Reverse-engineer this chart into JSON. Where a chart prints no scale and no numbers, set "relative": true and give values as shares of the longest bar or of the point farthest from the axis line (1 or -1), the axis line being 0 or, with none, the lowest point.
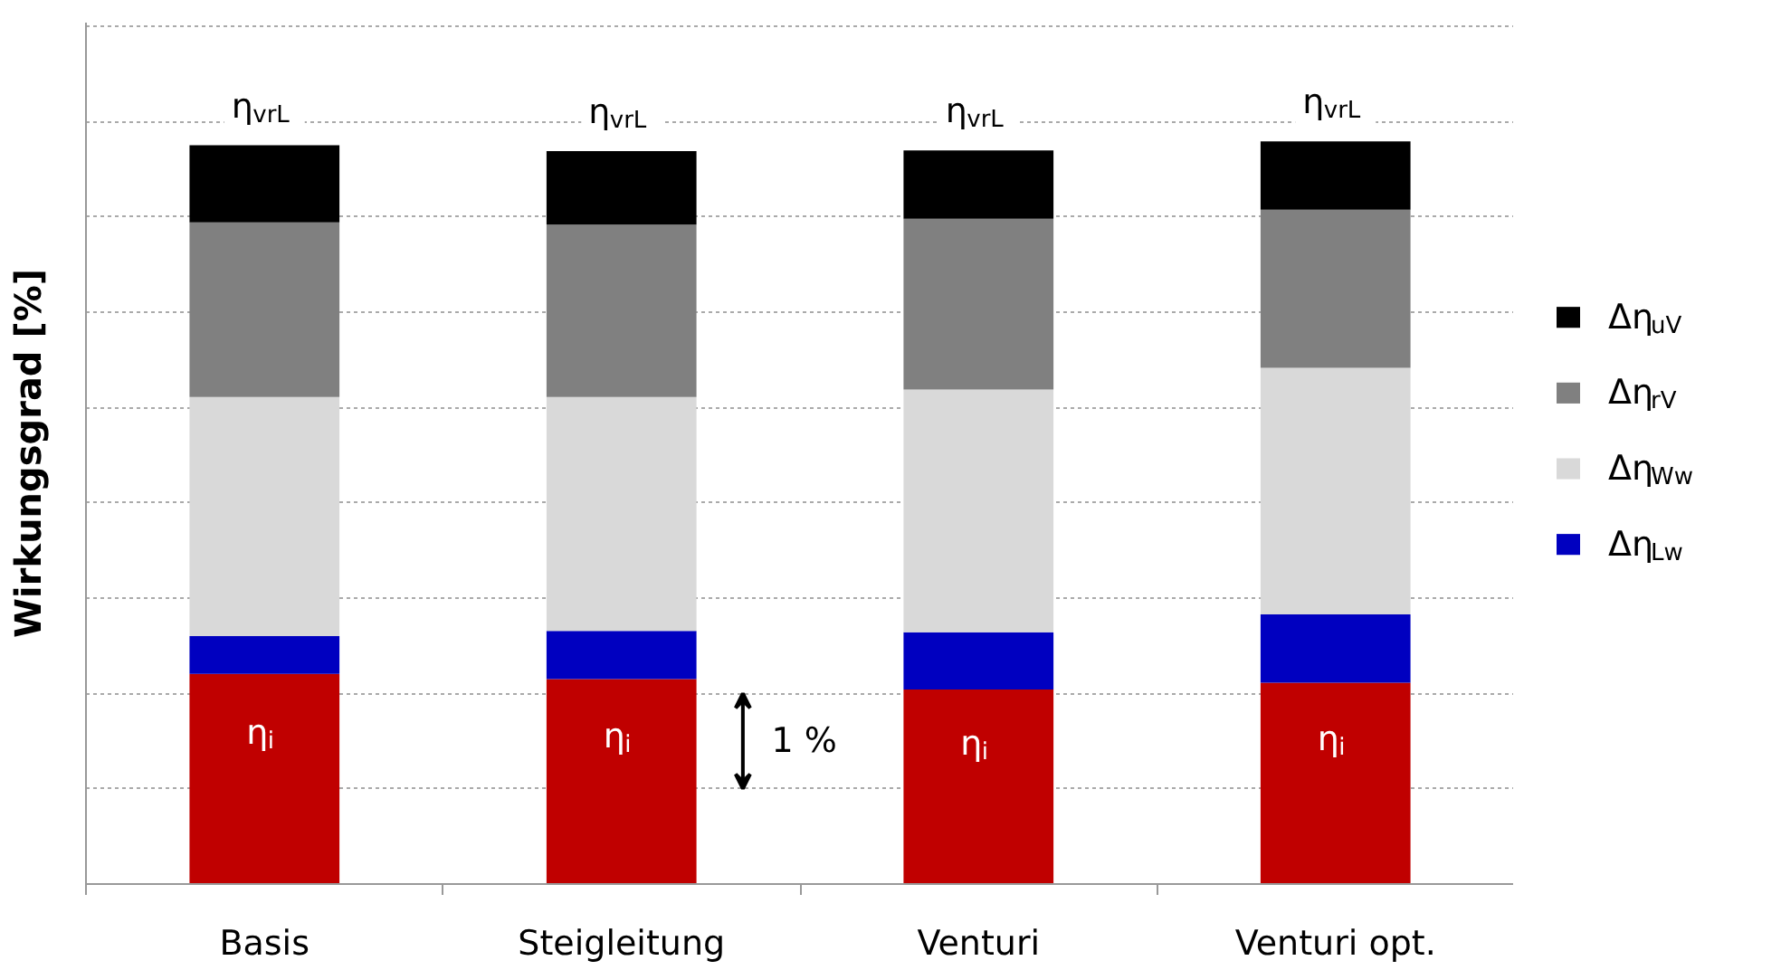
{
  "chart_data": {
    "type": "bar",
    "stacked": true,
    "relative": true,
    "ylabel": "Wirkungsgrad [%]",
    "categories": [
      "Basis",
      "Steigleitung",
      "Venturi",
      "Venturi opt."
    ],
    "series": [
      {
        "color": "#c00000",
        "values": [
          0.283,
          0.276,
          0.262,
          0.271
        ]
      },
      {
        "name": "Δη$_{Lw}$",
        "color": "#0000c0",
        "values": [
          0.051,
          0.065,
          0.077,
          0.092
        ]
      },
      {
        "name": "Δη$_{Ww}$",
        "color": "#d9d9d9",
        "values": [
          0.322,
          0.315,
          0.327,
          0.332
        ]
      },
      {
        "name": "Δη$_{rV}$",
        "color": "#808080",
        "values": [
          0.235,
          0.232,
          0.23,
          0.213
        ]
      },
      {
        "name": "Δη$_{uV}$",
        "color": "#000000",
        "values": [
          0.104,
          0.099,
          0.092,
          0.092
        ]
      }
    ],
    "grid": "y",
    "legend": "right",
    "annotations": [
      "η$_{vrL}$",
      "η$_{vrL}$",
      "η$_{vrL}$",
      "η$_{vrL}$",
      "η$_{i}$",
      "η$_{i}$",
      "η$_{i}$",
      "η$_{i}$",
      "1 %"
    ]
  }
}
